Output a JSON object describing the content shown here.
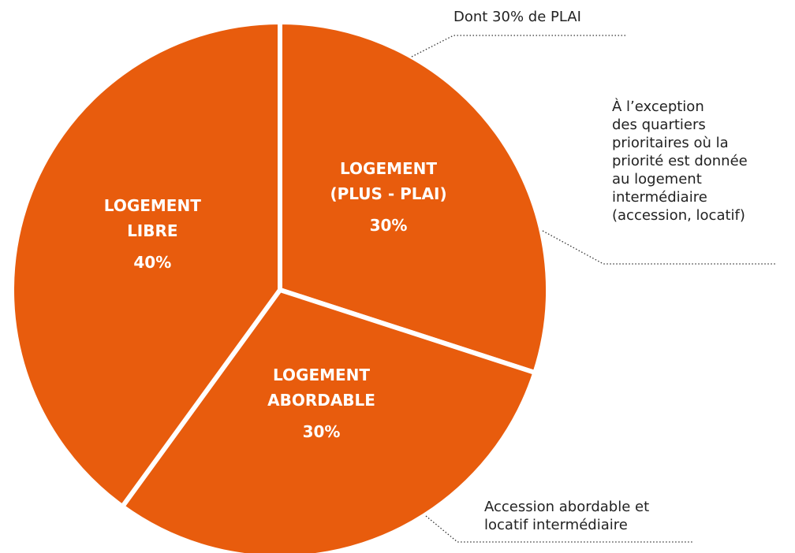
{
  "chart_data": {
    "type": "pie",
    "categories": [
      "LOGEMENT\n(PLUS - PLAI)",
      "LOGEMENT\nABORDABLE",
      "LOGEMENT\nLIBRE"
    ],
    "values": [
      30,
      30,
      40
    ],
    "value_labels": [
      "30%",
      "30%",
      "40%"
    ],
    "color": "#e85c0d",
    "annotations": [
      "Dont 30% de PLAI",
      "À l’exception\ndes quartiers\nprioritaires où la\npriorité est donnée\nau logement\nintermédiaire\n(accession, locatif)",
      "Accession abordable et\nlocatif intermédiaire"
    ]
  }
}
